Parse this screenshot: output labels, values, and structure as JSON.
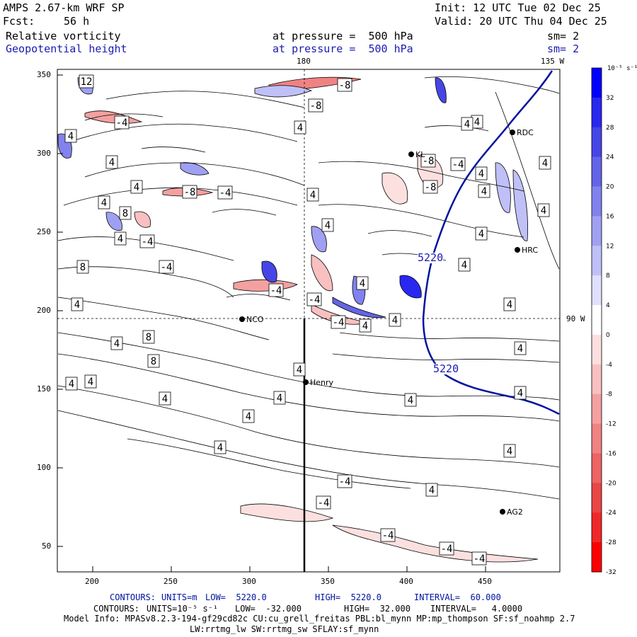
{
  "header": {
    "model_title": "AMPS 2.67-km WRF SP",
    "forecast_label": "Fcst:",
    "forecast_hours": "56 h",
    "init_line": "Init: 12 UTC Tue 02 Dec 25",
    "valid_line": "Valid: 20 UTC Thu 04 Dec 25",
    "field1_name": "Relative vorticity",
    "field1_level": "at pressure =  500 hPa",
    "field1_smooth": "sm= 2",
    "field2_name": "Geopotential height",
    "field2_level": "at pressure =  500 hPa",
    "field2_smooth": "sm= 2"
  },
  "map": {
    "meridian_label_top": "180",
    "meridian_label_top_right": "135 W",
    "parallel_label_right": "90 W",
    "x_ticks": [
      "200",
      "250",
      "300",
      "350",
      "400",
      "450"
    ],
    "y_ticks": [
      "350",
      "300",
      "250",
      "200",
      "150",
      "100",
      "50"
    ],
    "stations": [
      {
        "name": "RDC",
        "label": "RDC"
      },
      {
        "name": "KL",
        "label": "KL"
      },
      {
        "name": "HRC",
        "label": "HRC"
      },
      {
        "name": "NCO",
        "label": "NCO"
      },
      {
        "name": "Henry",
        "label": "Henry"
      },
      {
        "name": "AG2",
        "label": "AG2"
      }
    ],
    "height_contour_labels": [
      "5220",
      "5220"
    ],
    "vorticity_labels_positive": [
      "12",
      "4",
      "4",
      "4",
      "4",
      "8",
      "4",
      "8",
      "4",
      "4",
      "8",
      "8",
      "4",
      "4",
      "4",
      "4",
      "4",
      "4",
      "4",
      "4",
      "4",
      "4",
      "4",
      "4",
      "4",
      "4",
      "4",
      "4",
      "4",
      "4",
      "4",
      "4",
      "4",
      "4",
      "4",
      "4",
      "4",
      "4",
      "4"
    ],
    "vorticity_labels_negative": [
      "-4",
      "-8",
      "-8",
      "-4",
      "-8",
      "-4",
      "-4",
      "-4",
      "-4",
      "-4",
      "-8",
      "-4",
      "-8",
      "-4",
      "-4",
      "-4",
      "-4",
      "-4"
    ]
  },
  "colorbar": {
    "unit_label": "10⁻⁵ s⁻¹",
    "tick_labels": [
      "32",
      "28",
      "24",
      "20",
      "16",
      "12",
      "8",
      "4",
      "0",
      "-4",
      "-8",
      "-12",
      "-16",
      "-20",
      "-24",
      "-28",
      "-32"
    ],
    "colors": [
      "#0000ff",
      "#2828f0",
      "#4646e6",
      "#6464e6",
      "#8282ee",
      "#a0a0f2",
      "#c0c0f8",
      "#e0e0fc",
      "#ffffff",
      "#fce0e0",
      "#f8c0c0",
      "#f4a0a0",
      "#f08282",
      "#ec6464",
      "#ea4646",
      "#f02828",
      "#ff0000"
    ]
  },
  "footer": {
    "contours1_prefix": "CONTOURS:",
    "contours1_units": "UNITS=m",
    "contours1_low": "LOW=  5220.0",
    "contours1_high": "HIGH=  5220.0",
    "contours1_interval": "INTERVAL=  60.000",
    "contours2_prefix": "CONTOURS:",
    "contours2_units": "UNITS=10⁻⁵ s⁻¹",
    "contours2_low": "LOW=  -32.000",
    "contours2_high": "HIGH=  32.000",
    "contours2_interval": "INTERVAL=   4.0000",
    "model_info_line1": "Model Info: MPASv8.2.3-194-gf29cd82c CU:cu_grell_freitas PBL:bl_mynn MP:mp_thompson SF:sf_noahmp 2.7",
    "model_info_line2": "LW:rrtmg_lw SW:rrtmg_sw SFLAY:sf_mynn"
  }
}
